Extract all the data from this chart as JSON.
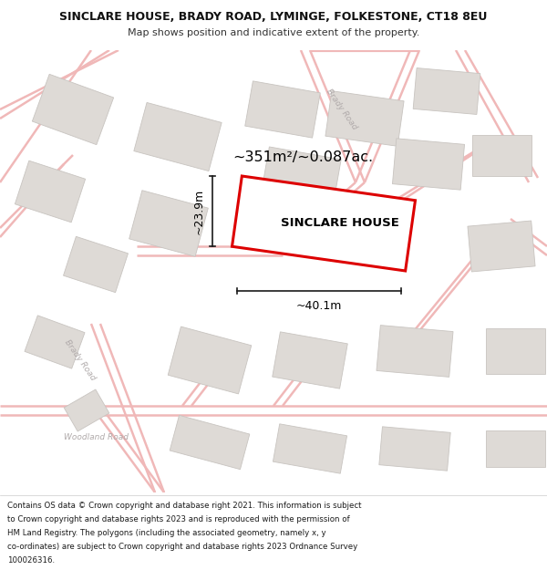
{
  "title_line1": "SINCLARE HOUSE, BRADY ROAD, LYMINGE, FOLKESTONE, CT18 8EU",
  "title_line2": "Map shows position and indicative extent of the property.",
  "area_label": "~351m²/~0.087ac.",
  "property_label": "SINCLARE HOUSE",
  "dim_width": "~40.1m",
  "dim_height": "~23.9m",
  "map_bg": "#f7f5f3",
  "road_color": "#f0b8b8",
  "road_outline": "#e8a8a8",
  "building_color": "#dedad6",
  "building_edge": "#c8c4c0",
  "property_edge": "#dd0000",
  "property_fill": "#ffffff",
  "dim_line_color": "#1a1a1a",
  "road_label_color": "#b0aaaa",
  "footer_lines": [
    "Contains OS data © Crown copyright and database right 2021. This information is subject",
    "to Crown copyright and database rights 2023 and is reproduced with the permission of",
    "HM Land Registry. The polygons (including the associated geometry, namely x, y",
    "co-ordinates) are subject to Crown copyright and database rights 2023 Ordnance Survey",
    "100026316."
  ]
}
